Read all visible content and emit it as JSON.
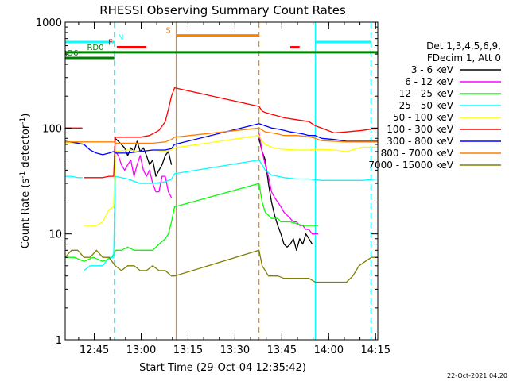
{
  "chart_data": {
    "type": "line",
    "title": "RHESSI Observing Summary Count Rates",
    "xlabel": "Start Time (29-Oct-04 12:35:42)",
    "ylabel": "Count Rate (s-1 detector-1)",
    "x_unit": "minutes after 12:35:42 UT",
    "xlim": [
      0,
      100
    ],
    "ylim": [
      1,
      1000
    ],
    "yscale": "log",
    "grid": false,
    "legend_placement": "right, outside plot",
    "x_ticks": [
      {
        "value": 9.3,
        "label": "12:45"
      },
      {
        "value": 24.3,
        "label": "13:00"
      },
      {
        "value": 39.3,
        "label": "13:15"
      },
      {
        "value": 54.3,
        "label": "13:30"
      },
      {
        "value": 69.3,
        "label": "13:45"
      },
      {
        "value": 84.3,
        "label": "14:00"
      },
      {
        "value": 99.3,
        "label": "14:15"
      }
    ],
    "y_ticks": [
      {
        "value": 1,
        "label": "1"
      },
      {
        "value": 10,
        "label": "10"
      },
      {
        "value": 100,
        "label": "100"
      },
      {
        "value": 1000,
        "label": "1000"
      }
    ],
    "legend_header": [
      "Det 1,3,4,5,6,9,",
      "FDecim 1, Att 0"
    ],
    "series": [
      {
        "name": "3 - 6 keV",
        "color": "#000000",
        "x": [
          0,
          5,
          10,
          15.5,
          16,
          17,
          18,
          19,
          20,
          21,
          22,
          23,
          24,
          25,
          26,
          27,
          28,
          29,
          30,
          31,
          32,
          33,
          34,
          34.5,
          35.5,
          62,
          63,
          64,
          65,
          66,
          67,
          68,
          69,
          70,
          71,
          72,
          73,
          74,
          75,
          76,
          77,
          78,
          79,
          79.5,
          80,
          80.5,
          82,
          85,
          90,
          95,
          100
        ],
        "y": [
          null,
          null,
          null,
          null,
          80,
          75,
          70,
          65,
          55,
          65,
          60,
          75,
          60,
          65,
          55,
          45,
          50,
          35,
          40,
          45,
          55,
          60,
          45,
          null,
          null,
          80,
          60,
          50,
          30,
          20,
          15,
          12,
          10,
          8,
          7.5,
          8,
          9,
          7,
          9,
          8,
          10,
          9,
          8,
          null,
          null,
          null,
          null,
          null,
          null,
          null,
          null
        ]
      },
      {
        "name": "6 - 12 keV",
        "color": "#ff00ff",
        "x": [
          16,
          17,
          18,
          19,
          20,
          21,
          22,
          23,
          24,
          25,
          26,
          27,
          28,
          29,
          30,
          31,
          32,
          33,
          34,
          34.5,
          62,
          63,
          64,
          65,
          66,
          67,
          68,
          69,
          70,
          71,
          72,
          73,
          74,
          75,
          76,
          77,
          78,
          79,
          80,
          81
        ],
        "y": [
          60,
          55,
          45,
          40,
          45,
          50,
          35,
          45,
          55,
          40,
          35,
          40,
          30,
          25,
          25,
          35,
          35,
          25,
          22,
          null,
          90,
          60,
          45,
          35,
          25,
          22,
          20,
          18,
          16,
          15,
          14,
          13,
          13,
          12,
          12,
          11,
          11,
          10,
          10,
          10
        ]
      },
      {
        "name": "12 - 25 keV",
        "color": "#00ff00",
        "x": [
          0,
          3,
          6,
          9,
          12,
          15,
          16,
          18,
          20,
          22,
          24,
          26,
          28,
          30,
          32,
          33,
          34,
          35,
          62,
          63,
          64,
          65,
          66,
          67,
          68,
          69,
          70,
          72,
          74,
          76,
          78,
          80,
          81
        ],
        "y": [
          6,
          6,
          5.5,
          6,
          5.5,
          6,
          7,
          7,
          7.5,
          7,
          7,
          7,
          7,
          8,
          9,
          10,
          13,
          18,
          30,
          20,
          16,
          15,
          14,
          14,
          14,
          13,
          13,
          13,
          12.5,
          12,
          12,
          12,
          12
        ]
      },
      {
        "name": "25 - 50 keV",
        "color": "#00ffff",
        "x": [
          0,
          2,
          4,
          5.5,
          5.8,
          6,
          8,
          10,
          12,
          14,
          15.5,
          16,
          20,
          24,
          28,
          32,
          34,
          35,
          62,
          63,
          64,
          66,
          68,
          70,
          74,
          78,
          82,
          86,
          90,
          95,
          100
        ],
        "y": [
          35,
          35,
          34,
          34,
          null,
          4.5,
          5,
          5,
          5,
          6,
          6,
          35,
          33,
          30,
          30,
          31,
          33,
          37,
          50,
          45,
          40,
          36,
          35,
          34,
          33,
          33,
          32,
          32,
          32,
          32,
          33
        ]
      },
      {
        "name": "50 - 100 keV",
        "color": "#ffff00",
        "x": [
          0,
          2,
          4,
          5.5,
          5.8,
          6,
          8,
          10,
          12,
          14,
          15.5,
          16,
          20,
          24,
          28,
          32,
          34,
          35,
          62,
          63,
          64,
          66,
          68,
          70,
          74,
          78,
          82,
          86,
          90,
          95,
          100
        ],
        "y": [
          72,
          73,
          72,
          72,
          null,
          12,
          12,
          12,
          13,
          17,
          18,
          60,
          62,
          60,
          62,
          60,
          62,
          65,
          85,
          75,
          70,
          66,
          64,
          63,
          62,
          62,
          63,
          62,
          60,
          66,
          66
        ]
      },
      {
        "name": "100 - 300 keV",
        "color": "#ff0000",
        "x": [
          0,
          2,
          4,
          5.5,
          5.8,
          6,
          8,
          10,
          12,
          14,
          15.5,
          16,
          20,
          24,
          27,
          30,
          32,
          33,
          34,
          35,
          62,
          63,
          64,
          66,
          68,
          70,
          74,
          78,
          80,
          82,
          86,
          90,
          95,
          100
        ],
        "y": [
          100,
          100,
          100,
          100,
          null,
          34,
          34,
          34,
          34,
          35,
          35,
          82,
          82,
          82,
          85,
          95,
          115,
          150,
          200,
          240,
          160,
          145,
          140,
          135,
          130,
          125,
          120,
          115,
          105,
          100,
          90,
          92,
          95,
          100
        ]
      },
      {
        "name": "300 - 800 keV",
        "color": "#0000ff",
        "x": [
          0,
          4,
          6,
          8,
          10,
          12,
          14,
          15.5,
          16,
          20,
          24,
          28,
          32,
          34,
          35,
          62,
          64,
          66,
          68,
          70,
          72,
          74,
          76,
          78,
          80,
          82,
          86,
          90,
          95,
          100
        ],
        "y": [
          75,
          72,
          70,
          62,
          58,
          56,
          58,
          60,
          58,
          58,
          60,
          62,
          62,
          64,
          70,
          110,
          105,
          100,
          98,
          95,
          92,
          90,
          88,
          85,
          85,
          80,
          78,
          75,
          75,
          75
        ]
      },
      {
        "name": "800 - 7000 keV",
        "color": "#ff8000",
        "x": [
          0,
          4,
          8,
          12,
          15.5,
          16,
          20,
          24,
          28,
          32,
          34,
          35,
          62,
          64,
          66,
          68,
          70,
          74,
          78,
          80,
          82,
          86,
          90,
          95,
          100
        ],
        "y": [
          74,
          74,
          74,
          74,
          74,
          72,
          72,
          72,
          72,
          74,
          78,
          82,
          100,
          92,
          90,
          88,
          85,
          85,
          83,
          80,
          76,
          75,
          74,
          74,
          74
        ]
      },
      {
        "name": "7000 - 15000 keV",
        "color": "#808000",
        "x": [
          0,
          2,
          4,
          6,
          8,
          10,
          12,
          14,
          16,
          18,
          20,
          22,
          24,
          26,
          28,
          30,
          32,
          34,
          35,
          62,
          63,
          64,
          65,
          66,
          68,
          70,
          72,
          74,
          76,
          78,
          80,
          82,
          84,
          86,
          88,
          90,
          92,
          94,
          96,
          98,
          100
        ],
        "y": [
          6,
          7,
          7,
          6,
          6,
          7,
          6,
          6,
          5,
          4.5,
          5,
          5,
          4.5,
          4.5,
          5,
          4.5,
          4.5,
          4,
          4,
          7,
          5,
          4.5,
          4,
          4,
          4,
          3.8,
          3.8,
          3.8,
          3.8,
          3.8,
          3.5,
          3.5,
          3.5,
          3.5,
          3.5,
          3.5,
          4,
          5,
          5.5,
          6,
          6
        ]
      }
    ],
    "vertical_markers": [
      {
        "x": 15.7,
        "color": "#00ffff",
        "style": "dashed"
      },
      {
        "x": 35.5,
        "color": "#ff8000",
        "style": "solid"
      },
      {
        "x": 62.0,
        "color": "#ff8000",
        "style": "dashed"
      },
      {
        "x": 80.0,
        "color": "#00ffff",
        "style": "solid"
      },
      {
        "x": 97.8,
        "color": "#00ffff",
        "style": "dashed"
      }
    ],
    "flag_bars": [
      {
        "label": "N",
        "color": "#00ffff",
        "y": 650,
        "segments": [
          [
            0,
            15.7
          ],
          [
            80,
            97.8
          ]
        ]
      },
      {
        "label": "S",
        "color": "#ff8000",
        "y": 750,
        "segments": [
          [
            35.5,
            62
          ]
        ]
      },
      {
        "label": "F",
        "color": "#ff0000",
        "y": 580,
        "segments": [
          [
            16.5,
            26
          ],
          [
            72,
            75
          ]
        ]
      },
      {
        "label": "RD0",
        "color": "#008000",
        "y": 520,
        "segments": [
          [
            0,
            100
          ]
        ]
      },
      {
        "label": "RD6",
        "color": "#008000",
        "y": 460,
        "segments": [
          [
            0,
            15.7
          ]
        ]
      }
    ]
  },
  "footer_timestamp": "22-Oct-2021 04:20"
}
